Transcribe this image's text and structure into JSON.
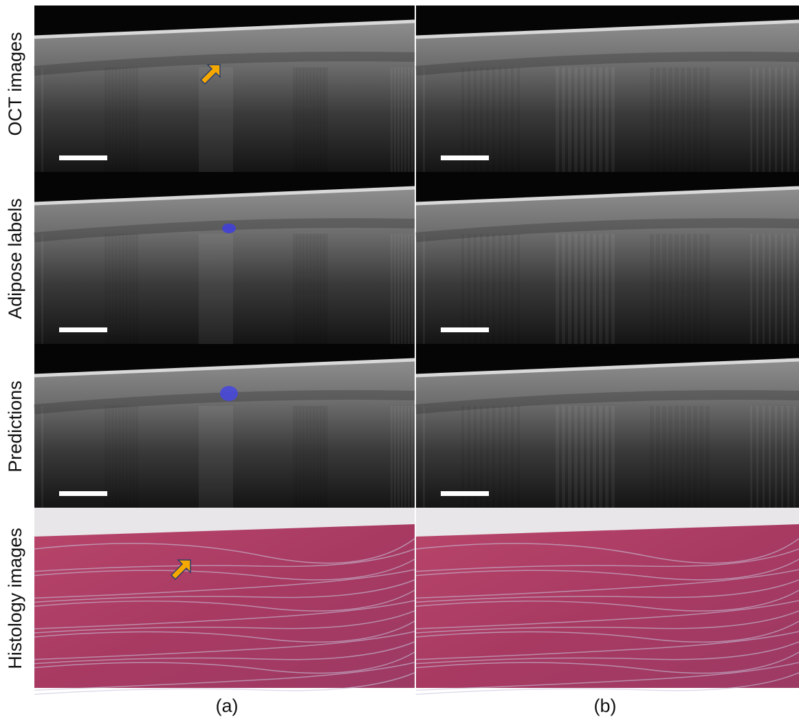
{
  "row_labels": [
    "OCT images",
    "Adipose labels",
    "Predictions",
    "Histology images"
  ],
  "column_labels": [
    "(a)",
    "(b)"
  ]
}
